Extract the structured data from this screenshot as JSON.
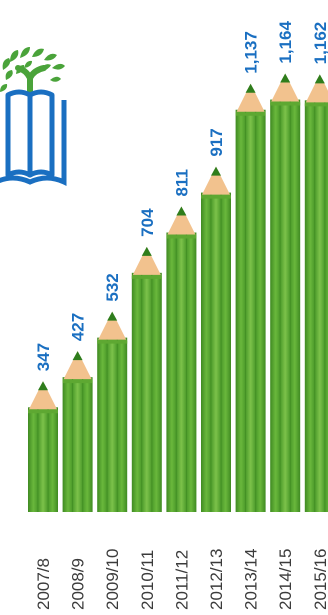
{
  "colors": {
    "pencil_light": "#7cc24a",
    "pencil_mid": "#5ea832",
    "pencil_dark": "#3f8a22",
    "wood": "#f2c28e",
    "lead": "#2f7d1c",
    "value_text": "#1a6fc1",
    "tick_text": "#3b3b3b",
    "logo_green": "#4aa33a",
    "logo_blue": "#1a6fc1"
  },
  "logo": {
    "icon": "eco-schools-tree-book-logo"
  },
  "chart_data": {
    "type": "bar",
    "categories": [
      "2007/8",
      "2008/9",
      "2009/10",
      "2010/11",
      "2011/12",
      "2012/13",
      "2013/14",
      "2014/15",
      "2015/16"
    ],
    "values": [
      347,
      427,
      532,
      704,
      811,
      917,
      1137,
      1164,
      1162
    ],
    "value_labels": [
      "347",
      "427",
      "532",
      "704",
      "811",
      "917",
      "1,137",
      "1,164",
      "1,162"
    ],
    "title": "",
    "xlabel": "",
    "ylabel": "",
    "ylim": [
      0,
      1200
    ],
    "grid": false,
    "legend": "none",
    "bar_style": "pencil",
    "label_orientation": "vertical"
  }
}
